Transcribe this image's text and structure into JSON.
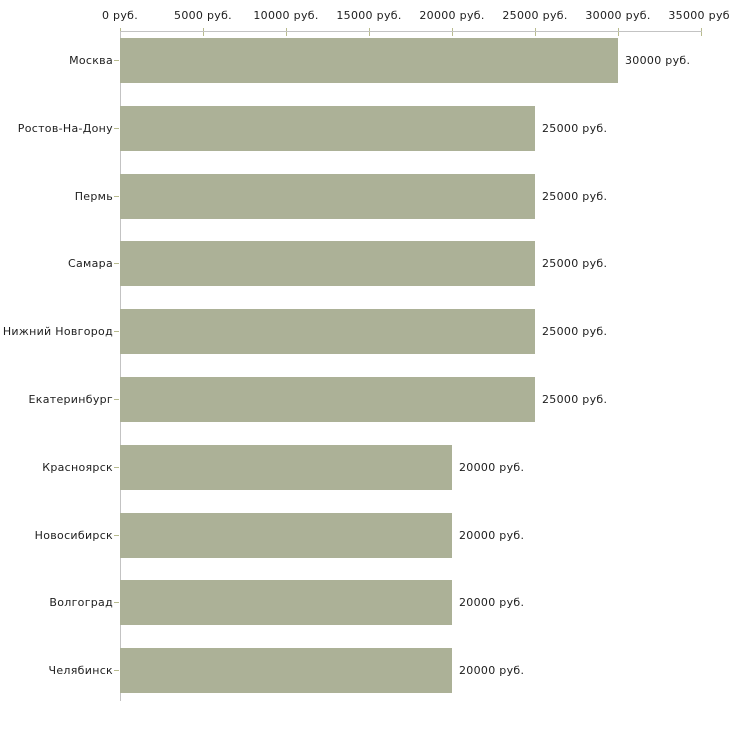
{
  "chart_data": {
    "type": "bar",
    "orientation": "horizontal",
    "title": "",
    "xlabel": "",
    "ylabel": "",
    "unit": "руб.",
    "axis_position": "top",
    "grid": false,
    "legend": false,
    "xlim": [
      0,
      35000
    ],
    "categories": [
      "Москва",
      "Ростов-На-Дону",
      "Пермь",
      "Самара",
      "Нижний Новгород",
      "Екатеринбург",
      "Красноярск",
      "Новосибирск",
      "Волгоград",
      "Челябинск"
    ],
    "values": [
      30000,
      25000,
      25000,
      25000,
      25000,
      25000,
      20000,
      20000,
      20000,
      20000
    ],
    "bar_labels": [
      "30000 руб.",
      "25000 руб.",
      "25000 руб.",
      "25000 руб.",
      "25000 руб.",
      "25000 руб.",
      "20000 руб.",
      "20000 руб.",
      "20000 руб.",
      "20000 руб."
    ],
    "x_ticks": [
      {
        "value": 0,
        "label": "0 руб."
      },
      {
        "value": 5000,
        "label": "5000 руб."
      },
      {
        "value": 10000,
        "label": "10000 руб."
      },
      {
        "value": 15000,
        "label": "15000 руб."
      },
      {
        "value": 20000,
        "label": "20000 руб."
      },
      {
        "value": 25000,
        "label": "25000 руб."
      },
      {
        "value": 30000,
        "label": "30000 руб."
      },
      {
        "value": 35000,
        "label": "35000 руб."
      }
    ],
    "colors": {
      "bar": "#acb197",
      "axis_line": "#c3c3c3",
      "tick_mark": "#b8bb8e",
      "label_text": "#1d1d1d",
      "background": "#ffffff"
    }
  }
}
